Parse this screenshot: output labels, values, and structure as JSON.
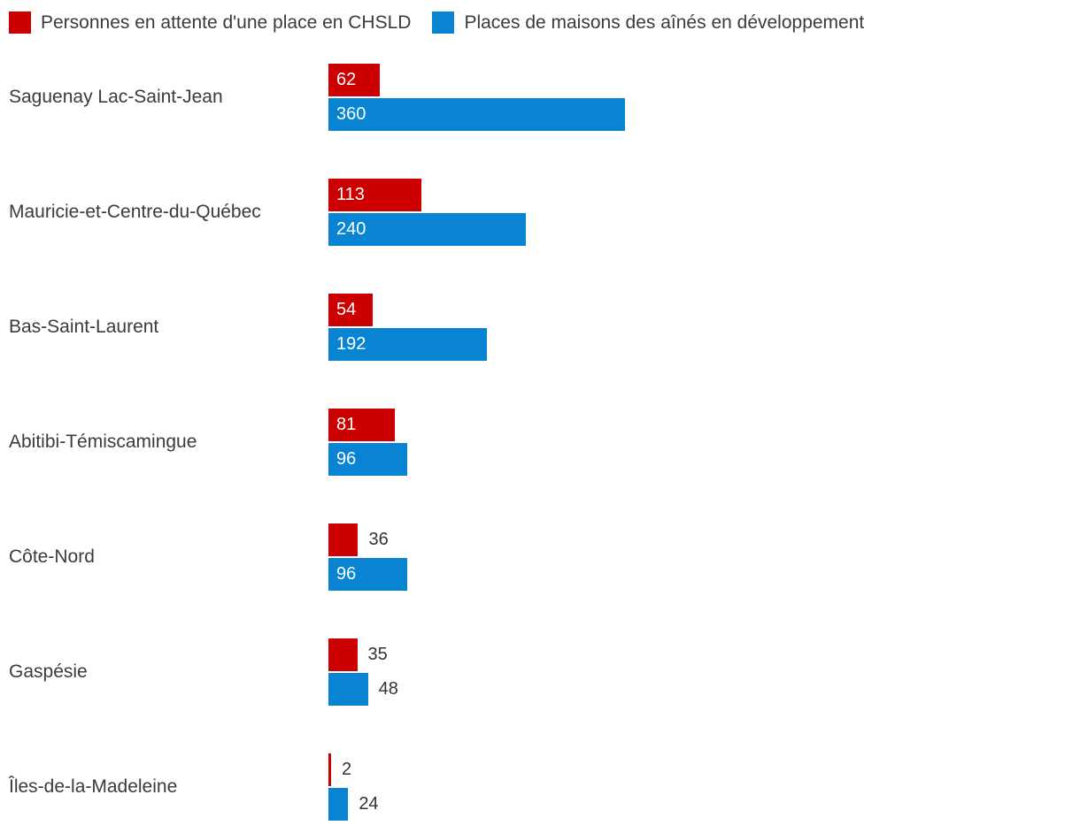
{
  "chart_data": {
    "type": "bar",
    "orientation": "horizontal",
    "title": "",
    "xlabel": "",
    "ylabel": "",
    "grid": false,
    "legend_position": "top",
    "xlim": [
      0,
      380
    ],
    "categories": [
      "Saguenay Lac-Saint-Jean",
      "Mauricie-et-Centre-du-Québec",
      "Bas-Saint-Laurent",
      "Abitibi-Témiscamingue",
      "Côte-Nord",
      "Gaspésie",
      "Îles-de-la-Madeleine"
    ],
    "series": [
      {
        "name": "Personnes en attente d'une place en CHSLD",
        "color": "#cc0000",
        "values": [
          62,
          113,
          54,
          81,
          36,
          35,
          2
        ]
      },
      {
        "name": "Places de maisons des aînés en développement",
        "color": "#0884d2",
        "values": [
          360,
          240,
          192,
          96,
          96,
          48,
          24
        ]
      }
    ],
    "value_label_rule": "label printed in white inside bar start; printed dark outside right of bar when bar is short"
  },
  "colors": {
    "background": "#ffffff",
    "series_red": "#cc0000",
    "series_blue": "#0884d2",
    "text": "#3b3b3b",
    "value_outside_text": "#333333",
    "value_inside_text": "#ffffff"
  }
}
